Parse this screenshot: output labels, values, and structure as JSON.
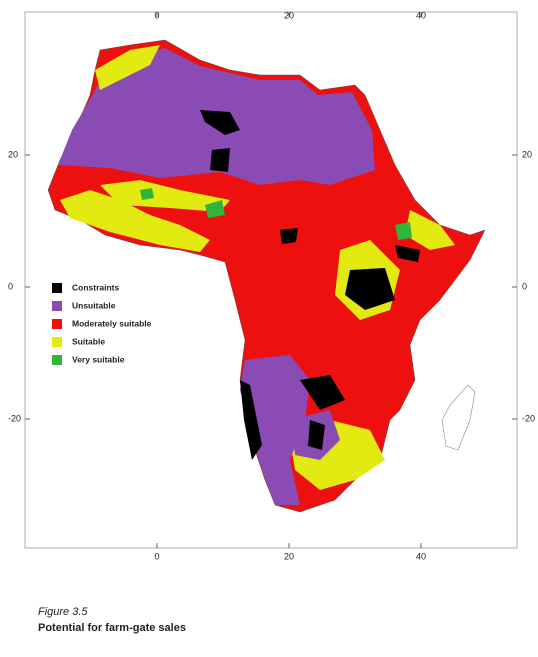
{
  "map": {
    "top_ticks": [
      0,
      20,
      40
    ],
    "bottom_ticks": [
      0,
      20,
      40
    ],
    "left_ticks": [
      20,
      0,
      -20
    ],
    "right_ticks": [
      20,
      0,
      -20
    ],
    "legend": [
      {
        "label": "Constraints",
        "color": "#000000"
      },
      {
        "label": "Unsuitable",
        "color": "#8a4bb5"
      },
      {
        "label": "Moderately suitable",
        "color": "#ee0f0f"
      },
      {
        "label": "Suitable",
        "color": "#e2ea12"
      },
      {
        "label": "Very suitable",
        "color": "#2eb53a"
      }
    ],
    "caption": {
      "figure": "Figure 3.5",
      "title": "Potential for farm-gate sales"
    }
  }
}
